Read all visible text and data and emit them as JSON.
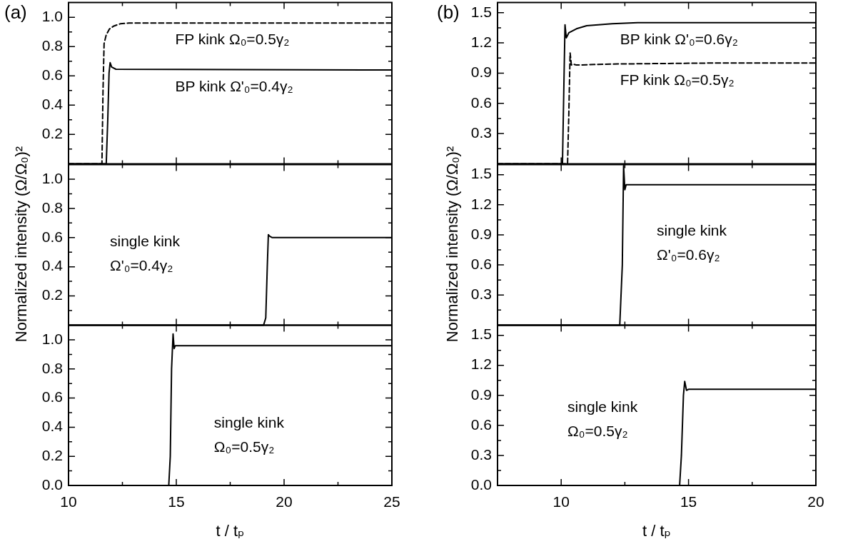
{
  "chart_data": [
    {
      "type": "line",
      "annotations": [
        "(a)"
      ],
      "xlim": [
        10,
        25
      ],
      "ylim": [
        0,
        1.1
      ],
      "tick_labels": "y",
      "xticks": [
        10,
        {
          "value": 12.5,
          "label": null
        },
        15,
        {
          "value": 17.5,
          "label": null
        },
        20,
        {
          "value": 22.5,
          "label": null
        },
        25
      ],
      "yticks": [
        {
          "value": 0.1,
          "label": null
        },
        0.2,
        {
          "value": 0.3,
          "label": null
        },
        0.4,
        {
          "value": 0.5,
          "label": null
        },
        0.6,
        {
          "value": 0.7,
          "label": null
        },
        0.8,
        {
          "value": 0.9,
          "label": null
        },
        {
          "value": 1,
          "label": "1.0"
        }
      ],
      "series": [
        {
          "name": "FP kink Ω₀=0.5γ₂",
          "color": "#000000",
          "line_style": "dashed",
          "x": [
            10,
            11.55,
            11.6,
            11.65,
            11.75,
            11.9,
            12.1,
            12.4,
            12.8,
            25
          ],
          "values": [
            0,
            0,
            0.5,
            0.82,
            0.88,
            0.92,
            0.94,
            0.955,
            0.96,
            0.96
          ]
        },
        {
          "name": "BP kink Ω'₀=0.4γ₂",
          "color": "#000000",
          "line_style": "solid",
          "x": [
            10,
            11.75,
            11.82,
            11.88,
            11.93,
            12.0,
            12.2,
            25
          ],
          "values": [
            0,
            0,
            0.3,
            0.62,
            0.69,
            0.66,
            0.645,
            0.64
          ]
        }
      ]
    },
    {
      "type": "line",
      "ylabel": "Normalized intensity (Ω/Ω₀)²",
      "xlim": [
        10,
        25
      ],
      "ylim": [
        0,
        1.1
      ],
      "tick_labels": "y",
      "xticks": [
        10,
        {
          "value": 12.5,
          "label": null
        },
        15,
        {
          "value": 17.5,
          "label": null
        },
        20,
        {
          "value": 22.5,
          "label": null
        },
        25
      ],
      "yticks": [
        {
          "value": 0.1,
          "label": null
        },
        0.2,
        {
          "value": 0.3,
          "label": null
        },
        0.4,
        {
          "value": 0.5,
          "label": null
        },
        0.6,
        {
          "value": 0.7,
          "label": null
        },
        0.8,
        {
          "value": 0.9,
          "label": null
        },
        {
          "value": 1,
          "label": "1.0"
        }
      ],
      "series": [
        {
          "name": "single kink Ω'₀=0.4γ₂",
          "color": "#000000",
          "line_style": "solid",
          "x": [
            10,
            19.05,
            19.15,
            19.22,
            19.27,
            19.32,
            19.45,
            25
          ],
          "values": [
            0,
            0,
            0.05,
            0.4,
            0.62,
            0.61,
            0.6,
            0.6
          ]
        }
      ]
    },
    {
      "type": "line",
      "xlabel": "t / tₚ",
      "xlim": [
        10,
        25
      ],
      "ylim": [
        0,
        1.1
      ],
      "xticks": [
        10,
        {
          "value": 12.5,
          "label": null
        },
        15,
        {
          "value": 17.5,
          "label": null
        },
        20,
        {
          "value": 22.5,
          "label": null
        },
        25
      ],
      "yticks": [
        {
          "value": 0,
          "label": "0.0"
        },
        {
          "value": 0.1,
          "label": null
        },
        0.2,
        {
          "value": 0.3,
          "label": null
        },
        0.4,
        {
          "value": 0.5,
          "label": null
        },
        0.6,
        {
          "value": 0.7,
          "label": null
        },
        0.8,
        {
          "value": 0.9,
          "label": null
        },
        {
          "value": 1,
          "label": "1.0"
        }
      ],
      "series": [
        {
          "name": "single kink Ω₀=0.5γ₂",
          "color": "#000000",
          "line_style": "solid",
          "x": [
            10,
            14.65,
            14.72,
            14.78,
            14.85,
            14.9,
            14.95,
            25
          ],
          "values": [
            0,
            0,
            0.2,
            0.8,
            1.04,
            0.94,
            0.96,
            0.96
          ]
        }
      ]
    },
    {
      "type": "line",
      "annotations": [
        "(b)"
      ],
      "xlim": [
        7.5,
        20
      ],
      "ylim": [
        0,
        1.6
      ],
      "tick_labels": "y",
      "xticks": [
        10,
        {
          "value": 12.5,
          "label": null
        },
        15,
        {
          "value": 17.5,
          "label": null
        },
        20
      ],
      "yticks": [
        {
          "value": 0.15,
          "label": null
        },
        0.3,
        {
          "value": 0.45,
          "label": null
        },
        0.6,
        {
          "value": 0.75,
          "label": null
        },
        0.9,
        {
          "value": 1.05,
          "label": null
        },
        1.2,
        {
          "value": 1.35,
          "label": null
        },
        1.5
      ],
      "series": [
        {
          "name": "BP kink Ω'₀=0.6γ₂",
          "color": "#000000",
          "line_style": "solid",
          "x": [
            7.5,
            10.05,
            10.1,
            10.15,
            10.2,
            10.3,
            10.6,
            11,
            12,
            13,
            20
          ],
          "values": [
            0,
            0,
            0.7,
            1.38,
            1.25,
            1.3,
            1.34,
            1.37,
            1.39,
            1.4,
            1.4
          ]
        },
        {
          "name": "FP kink Ω₀=0.5γ₂",
          "color": "#000000",
          "line_style": "dashed",
          "x": [
            7.5,
            10.25,
            10.3,
            10.35,
            10.4,
            10.45,
            10.6,
            12,
            16,
            20
          ],
          "values": [
            0,
            0,
            0.5,
            1.1,
            0.98,
            0.99,
            0.98,
            0.99,
            1.0,
            1.0
          ]
        }
      ]
    },
    {
      "type": "line",
      "ylabel": "Normalized intensity (Ω/Ω₀)²",
      "xlim": [
        7.5,
        20
      ],
      "ylim": [
        0,
        1.6
      ],
      "tick_labels": "y",
      "xticks": [
        10,
        {
          "value": 12.5,
          "label": null
        },
        15,
        {
          "value": 17.5,
          "label": null
        },
        20
      ],
      "yticks": [
        {
          "value": 0.15,
          "label": null
        },
        0.3,
        {
          "value": 0.45,
          "label": null
        },
        0.6,
        {
          "value": 0.75,
          "label": null
        },
        0.9,
        {
          "value": 1.05,
          "label": null
        },
        1.2,
        {
          "value": 1.35,
          "label": null
        },
        1.5
      ],
      "series": [
        {
          "name": "single kink Ω'₀=0.6γ₂",
          "color": "#000000",
          "line_style": "solid",
          "x": [
            7.5,
            12.3,
            12.4,
            12.45,
            12.5,
            12.55,
            12.6,
            20
          ],
          "values": [
            0,
            0,
            0.6,
            1.59,
            1.35,
            1.4,
            1.4,
            1.4
          ]
        }
      ]
    },
    {
      "type": "line",
      "xlabel": "t / tₚ",
      "xlim": [
        7.5,
        20
      ],
      "ylim": [
        0,
        1.6
      ],
      "xticks": [
        10,
        {
          "value": 12.5,
          "label": null
        },
        15,
        {
          "value": 17.5,
          "label": null
        },
        20
      ],
      "yticks": [
        {
          "value": 0,
          "label": "0.0"
        },
        {
          "value": 0.15,
          "label": null
        },
        0.3,
        {
          "value": 0.45,
          "label": null
        },
        0.6,
        {
          "value": 0.75,
          "label": null
        },
        0.9,
        {
          "value": 1.05,
          "label": null
        },
        1.2,
        {
          "value": 1.35,
          "label": null
        },
        1.5
      ],
      "series": [
        {
          "name": "single kink Ω₀=0.5γ₂",
          "color": "#000000",
          "line_style": "solid",
          "x": [
            7.5,
            14.65,
            14.72,
            14.8,
            14.85,
            14.92,
            15.0,
            20
          ],
          "values": [
            0,
            0,
            0.3,
            0.9,
            1.04,
            0.95,
            0.96,
            0.96
          ]
        }
      ]
    }
  ]
}
